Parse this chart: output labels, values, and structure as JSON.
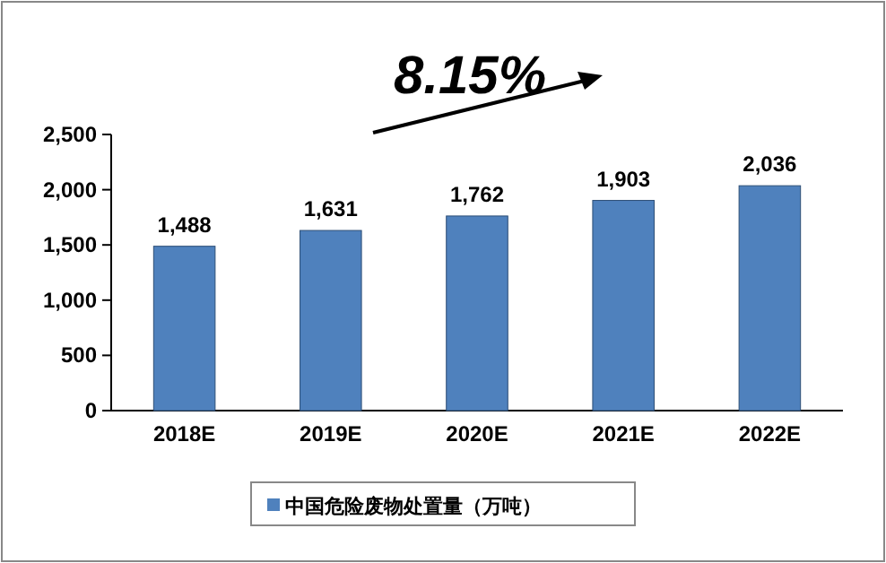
{
  "chart_data": {
    "type": "bar",
    "categories": [
      "2018E",
      "2019E",
      "2020E",
      "2021E",
      "2022E"
    ],
    "series": [
      {
        "name": "中国危险废物处置量（万吨）",
        "color": "#4f81bd",
        "values": [
          1488,
          1631,
          1762,
          1903,
          2036
        ],
        "value_labels": [
          "1,488",
          "1,631",
          "1,762",
          "1,903",
          "2,036"
        ]
      }
    ],
    "ylim": [
      0,
      2500
    ],
    "yticks": [
      0,
      {
        "value": 500,
        "label": "500"
      },
      {
        "value": 1000,
        "label": "1,000"
      },
      {
        "value": 1500,
        "label": "1,500"
      },
      {
        "value": 2000,
        "label": "2,000"
      },
      {
        "value": 2500,
        "label": "2,500"
      }
    ],
    "annotations": [
      "8.15%"
    ],
    "grid": false,
    "legend": "bottom"
  }
}
